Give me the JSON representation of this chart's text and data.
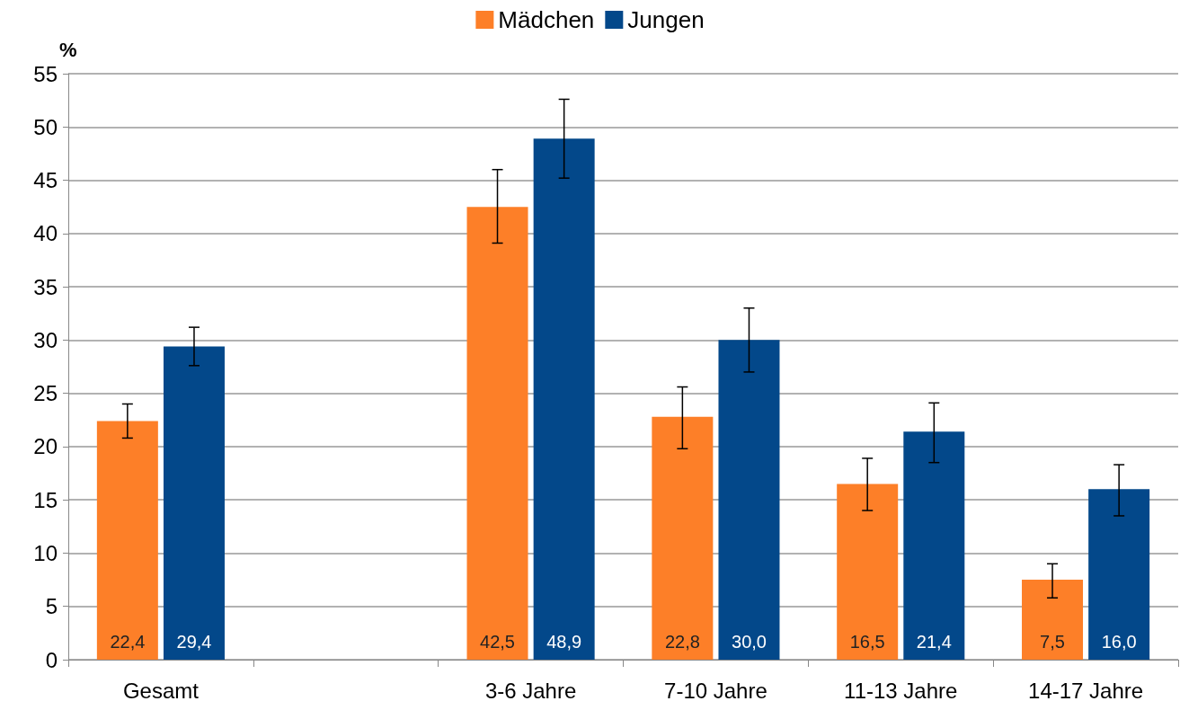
{
  "chart_data": {
    "type": "bar",
    "ylabel": "%",
    "categories": [
      "Gesamt",
      null,
      "3-6 Jahre",
      "7-10 Jahre",
      "11-13 Jahre",
      "14-17 Jahre"
    ],
    "series": [
      {
        "name": "Mädchen",
        "color": "#fd7f28",
        "values": [
          22.4,
          null,
          42.5,
          22.8,
          16.5,
          7.5
        ],
        "value_labels": [
          "22,4",
          null,
          "42,5",
          "22,8",
          "16,5",
          "7,5"
        ],
        "errors": [
          [
            20.8,
            24.0
          ],
          null,
          [
            39.1,
            46.0
          ],
          [
            19.8,
            25.6
          ],
          [
            14.0,
            18.9
          ],
          [
            5.8,
            9.0
          ]
        ]
      },
      {
        "name": "Jungen",
        "color": "#03488a",
        "values": [
          29.4,
          null,
          48.9,
          30.0,
          21.4,
          16.0
        ],
        "value_labels": [
          "29,4",
          null,
          "48,9",
          "30,0",
          "21,4",
          "16,0"
        ],
        "errors": [
          [
            27.6,
            31.2
          ],
          null,
          [
            45.2,
            52.6
          ],
          [
            27.0,
            33.0
          ],
          [
            18.5,
            24.1
          ],
          [
            13.5,
            18.3
          ]
        ]
      }
    ],
    "ylim": [
      0,
      55
    ],
    "yticks": [
      0,
      5,
      10,
      15,
      20,
      25,
      30,
      35,
      40,
      45,
      50,
      55
    ],
    "grid": "y",
    "legend": "top"
  }
}
